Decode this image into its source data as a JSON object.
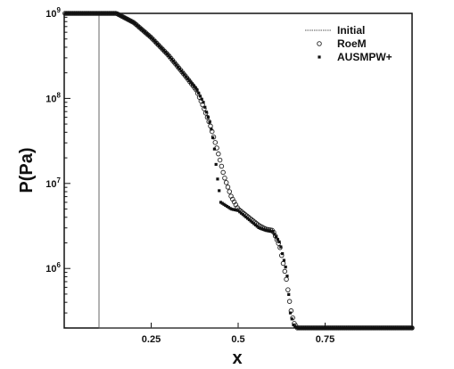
{
  "chart_data": {
    "type": "scatter",
    "xlabel": "x",
    "ylabel": "P(Pa)",
    "xlim": [
      0,
      1
    ],
    "ylim_log10": [
      5.3,
      9.0
    ],
    "log_y": true,
    "x_ticks": [
      {
        "value": 0.25,
        "label": "0.25"
      },
      {
        "value": 0.5,
        "label": "0.5"
      },
      {
        "value": 0.75,
        "label": "0.75"
      }
    ],
    "y_ticks": [
      {
        "exp": 9,
        "base": "10",
        "sup": "9"
      },
      {
        "exp": 8,
        "base": "10",
        "sup": "8"
      },
      {
        "exp": 7,
        "base": "10",
        "sup": "7"
      },
      {
        "exp": 6,
        "base": "10",
        "sup": "6"
      }
    ],
    "legend": {
      "placement": "top-right"
    },
    "series": [
      {
        "name": "Initial",
        "style": "line",
        "color": "#555555",
        "points": [
          [
            0,
            1000000000.0
          ],
          [
            0.1,
            1000000000.0
          ],
          [
            0.1,
            200000
          ],
          [
            1.0,
            200000
          ]
        ]
      },
      {
        "name": "RoeM",
        "style": "open-circle",
        "color": "#222222",
        "points": [
          [
            0,
            1000000000.0
          ],
          [
            0.1,
            1000000000.0
          ],
          [
            0.15,
            1000000000.0
          ],
          [
            0.2,
            780000000
          ],
          [
            0.25,
            520000000
          ],
          [
            0.3,
            320000000
          ],
          [
            0.35,
            180000000
          ],
          [
            0.38,
            125000000
          ],
          [
            0.4,
            80000000
          ],
          [
            0.42,
            48000000
          ],
          [
            0.44,
            25000000
          ],
          [
            0.46,
            12000000
          ],
          [
            0.48,
            7000000
          ],
          [
            0.5,
            5000000
          ],
          [
            0.53,
            4000000
          ],
          [
            0.56,
            3200000
          ],
          [
            0.58,
            2900000
          ],
          [
            0.6,
            2800000
          ],
          [
            0.62,
            1800000
          ],
          [
            0.64,
            700000
          ],
          [
            0.65,
            350000
          ],
          [
            0.66,
            230000
          ],
          [
            0.67,
            200000
          ],
          [
            1.0,
            200000
          ]
        ]
      },
      {
        "name": "AUSMPW+",
        "style": "filled-square",
        "color": "#111111",
        "points": [
          [
            0,
            1000000000.0
          ],
          [
            0.1,
            1000000000.0
          ],
          [
            0.15,
            1000000000.0
          ],
          [
            0.2,
            780000000
          ],
          [
            0.25,
            520000000
          ],
          [
            0.3,
            320000000
          ],
          [
            0.35,
            180000000
          ],
          [
            0.38,
            130000000
          ],
          [
            0.4,
            90000000
          ],
          [
            0.42,
            50000000
          ],
          [
            0.43,
            30000000
          ],
          [
            0.44,
            12000000
          ],
          [
            0.45,
            6000000
          ],
          [
            0.48,
            5000000
          ],
          [
            0.5,
            4800000
          ],
          [
            0.53,
            3800000
          ],
          [
            0.56,
            3000000
          ],
          [
            0.58,
            2800000
          ],
          [
            0.6,
            2700000
          ],
          [
            0.62,
            2000000
          ],
          [
            0.64,
            900000
          ],
          [
            0.65,
            300000
          ],
          [
            0.66,
            210000
          ],
          [
            0.67,
            200000
          ],
          [
            1.0,
            200000
          ]
        ]
      }
    ]
  }
}
